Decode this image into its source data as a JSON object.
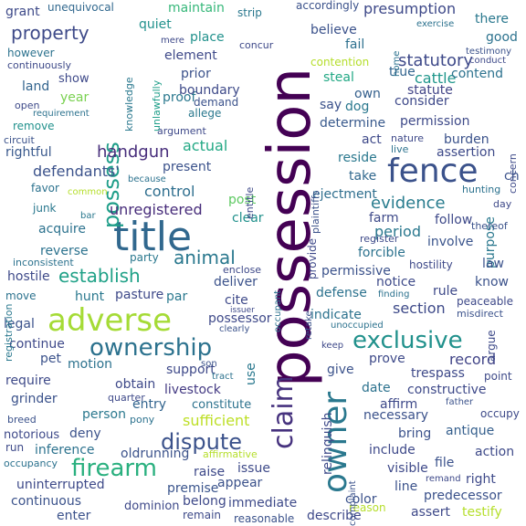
{
  "words": [
    {
      "text": "possession",
      "color": "#440154"
    },
    {
      "text": "title",
      "color": "#31688e"
    },
    {
      "text": "fence",
      "color": "#3b528b"
    },
    {
      "text": "adverse",
      "color": "#a5db36"
    },
    {
      "text": "owner",
      "color": "#2a788e"
    },
    {
      "text": "claim",
      "color": "#46327e"
    },
    {
      "text": "exclusive",
      "color": "#21918c"
    },
    {
      "text": "ownership",
      "color": "#2c728e"
    },
    {
      "text": "firearm",
      "color": "#2ab07f"
    },
    {
      "text": "dispute",
      "color": "#3b528b"
    },
    {
      "text": "possess",
      "color": "#1f9e89"
    },
    {
      "text": "property",
      "color": "#3e4a89"
    },
    {
      "text": "establish",
      "color": "#1fa187"
    },
    {
      "text": "animal",
      "color": "#2a788e"
    },
    {
      "text": "handgun",
      "color": "#472d7b"
    },
    {
      "text": "evidence",
      "color": "#287c8e"
    },
    {
      "text": "statutory",
      "color": "#3e4989"
    },
    {
      "text": "actual",
      "color": "#22a884"
    },
    {
      "text": "defendants'",
      "color": "#3b528b"
    },
    {
      "text": "control",
      "color": "#2e6e8e"
    },
    {
      "text": "unregistered",
      "color": "#472c7a"
    },
    {
      "text": "presumption",
      "color": "#3e4989"
    },
    {
      "text": "cattle",
      "color": "#1f968b"
    },
    {
      "text": "period",
      "color": "#2a788e"
    },
    {
      "text": "section",
      "color": "#3e4a89"
    },
    {
      "text": "record",
      "color": "#414487"
    },
    {
      "text": "sufficient",
      "color": "#bddf26"
    },
    {
      "text": "livestock",
      "color": "#443a83"
    },
    {
      "text": "antique",
      "color": "#355f8d"
    },
    {
      "text": "quiet",
      "color": "#21918c"
    },
    {
      "text": "proof",
      "color": "#2a788e"
    },
    {
      "text": "rightful",
      "color": "#38588c"
    },
    {
      "text": "person",
      "color": "#2a788e"
    },
    {
      "text": "premise",
      "color": "#3a548c"
    },
    {
      "text": "entry",
      "color": "#32648e"
    },
    {
      "text": "right",
      "color": "#3e4989"
    },
    {
      "text": "predecessor",
      "color": "#3b528b"
    },
    {
      "text": "fail",
      "color": "#2d708e"
    },
    {
      "text": "maintain",
      "color": "#35b779"
    },
    {
      "text": "grant",
      "color": "#3e4a89"
    },
    {
      "text": "unequivocal",
      "color": "#31688e"
    },
    {
      "text": "strip",
      "color": "#2a788e"
    },
    {
      "text": "accordingly",
      "color": "#3b528b"
    },
    {
      "text": "there",
      "color": "#2a788e"
    },
    {
      "text": "good",
      "color": "#2c728e"
    },
    {
      "text": "place",
      "color": "#21918c"
    },
    {
      "text": "element",
      "color": "#3e4989"
    },
    {
      "text": "concur",
      "color": "#3e4989"
    },
    {
      "text": "believe",
      "color": "#3b528b"
    },
    {
      "text": "contention",
      "color": "#b5de2b"
    },
    {
      "text": "true",
      "color": "#32648e"
    },
    {
      "text": "contend",
      "color": "#2c728e"
    },
    {
      "text": "steal",
      "color": "#22a884"
    },
    {
      "text": "statute",
      "color": "#414487"
    },
    {
      "text": "prior",
      "color": "#3b528b"
    },
    {
      "text": "year",
      "color": "#7ad151"
    },
    {
      "text": "show",
      "color": "#3e4989"
    },
    {
      "text": "land",
      "color": "#32648e"
    },
    {
      "text": "however",
      "color": "#2c728e"
    },
    {
      "text": "continuously",
      "color": "#3e4a89"
    },
    {
      "text": "remove",
      "color": "#21918c"
    },
    {
      "text": "boundary",
      "color": "#3e4a89"
    },
    {
      "text": "demand",
      "color": "#3b528b"
    },
    {
      "text": "allege",
      "color": "#2a788e"
    },
    {
      "text": "argument",
      "color": "#3e4989"
    },
    {
      "text": "knowledge",
      "color": "#2a788e"
    },
    {
      "text": "unlawfully",
      "color": "#1f9e89"
    },
    {
      "text": "say",
      "color": "#3b528b"
    },
    {
      "text": "own",
      "color": "#35608d"
    },
    {
      "text": "dog",
      "color": "#2a788e"
    },
    {
      "text": "consider",
      "color": "#3e4989"
    },
    {
      "text": "permission",
      "color": "#3e4a89"
    },
    {
      "text": "determine",
      "color": "#38598c"
    },
    {
      "text": "act",
      "color": "#3e4989"
    },
    {
      "text": "burden",
      "color": "#3b528b"
    },
    {
      "text": "reside",
      "color": "#2a788e"
    },
    {
      "text": "assertion",
      "color": "#3e4a89"
    },
    {
      "text": "take",
      "color": "#31688e"
    },
    {
      "text": "present",
      "color": "#3b528b"
    },
    {
      "text": "favor",
      "color": "#2c728e"
    },
    {
      "text": "junk",
      "color": "#2a788e"
    },
    {
      "text": "acquire",
      "color": "#2c728e"
    },
    {
      "text": "post",
      "color": "#5ec962"
    },
    {
      "text": "clear",
      "color": "#21918c"
    },
    {
      "text": "ejectment",
      "color": "#2e6e8e"
    },
    {
      "text": "farm",
      "color": "#3e4a89"
    },
    {
      "text": "follow",
      "color": "#3e4989"
    },
    {
      "text": "involve",
      "color": "#3a548c"
    },
    {
      "text": "provide",
      "color": "#3e4989"
    },
    {
      "text": "forcible",
      "color": "#2c728e"
    },
    {
      "text": "purpose",
      "color": "#2a788e"
    },
    {
      "text": "hostility",
      "color": "#3e4989"
    },
    {
      "text": "law",
      "color": "#3b528b"
    },
    {
      "text": "party",
      "color": "#2a788e"
    },
    {
      "text": "reverse",
      "color": "#2c728e"
    },
    {
      "text": "hostile",
      "color": "#3e4a89"
    },
    {
      "text": "pasture",
      "color": "#3e4989"
    },
    {
      "text": "hunt",
      "color": "#2a788e"
    },
    {
      "text": "move",
      "color": "#2c728e"
    },
    {
      "text": "deliver",
      "color": "#3b528b"
    },
    {
      "text": "par",
      "color": "#2a788e"
    },
    {
      "text": "cite",
      "color": "#3e4989"
    },
    {
      "text": "permissive",
      "color": "#3b528b"
    },
    {
      "text": "notice",
      "color": "#3e4a89"
    },
    {
      "text": "defense",
      "color": "#2c728e"
    },
    {
      "text": "rule",
      "color": "#3e4989"
    },
    {
      "text": "know",
      "color": "#3b528b"
    },
    {
      "text": "possessor",
      "color": "#3e4989"
    },
    {
      "text": "indicate",
      "color": "#2c728e"
    },
    {
      "text": "argue",
      "color": "#3e4a89"
    },
    {
      "text": "legal",
      "color": "#3b528b"
    },
    {
      "text": "continue",
      "color": "#3e4989"
    },
    {
      "text": "pet",
      "color": "#3b528b"
    },
    {
      "text": "motion",
      "color": "#2c728e"
    },
    {
      "text": "support",
      "color": "#3e4989"
    },
    {
      "text": "use",
      "color": "#2a788e"
    },
    {
      "text": "prove",
      "color": "#3e4a89"
    },
    {
      "text": "trespass",
      "color": "#3e4989"
    },
    {
      "text": "give",
      "color": "#3b528b"
    },
    {
      "text": "constructive",
      "color": "#3e4989"
    },
    {
      "text": "point",
      "color": "#3e4a89"
    },
    {
      "text": "require",
      "color": "#3e4a89"
    },
    {
      "text": "obtain",
      "color": "#3e4989"
    },
    {
      "text": "grinder",
      "color": "#3b528b"
    },
    {
      "text": "constitute",
      "color": "#2c728e"
    },
    {
      "text": "date",
      "color": "#2c728e"
    },
    {
      "text": "affirm",
      "color": "#3e4989"
    },
    {
      "text": "necessary",
      "color": "#3b528b"
    },
    {
      "text": "occupy",
      "color": "#3e4a89"
    },
    {
      "text": "notorious",
      "color": "#3e4989"
    },
    {
      "text": "deny",
      "color": "#3b528b"
    },
    {
      "text": "inference",
      "color": "#2c728e"
    },
    {
      "text": "run",
      "color": "#3e4a89"
    },
    {
      "text": "oldrunning",
      "color": "#3b528b"
    },
    {
      "text": "bring",
      "color": "#3b528b"
    },
    {
      "text": "include",
      "color": "#3e4989"
    },
    {
      "text": "action",
      "color": "#3e4a89"
    },
    {
      "text": "file",
      "color": "#3b528b"
    },
    {
      "text": "raise",
      "color": "#3e4989"
    },
    {
      "text": "issue",
      "color": "#3e4a89"
    },
    {
      "text": "appear",
      "color": "#3b528b"
    },
    {
      "text": "visible",
      "color": "#3e4989"
    },
    {
      "text": "line",
      "color": "#3b528b"
    },
    {
      "text": "uninterrupted",
      "color": "#3e4a89"
    },
    {
      "text": "continuous",
      "color": "#3b528b"
    },
    {
      "text": "belong",
      "color": "#3e4989"
    },
    {
      "text": "immediate",
      "color": "#3e4a89"
    },
    {
      "text": "color",
      "color": "#3b528b"
    },
    {
      "text": "assert",
      "color": "#3e4989"
    },
    {
      "text": "testify",
      "color": "#b5de2b"
    },
    {
      "text": "enter",
      "color": "#3b528b"
    },
    {
      "text": "dominion",
      "color": "#3e4989"
    },
    {
      "text": "remain",
      "color": "#3e4a89"
    },
    {
      "text": "reasonable",
      "color": "#3b528b"
    },
    {
      "text": "describe",
      "color": "#3e4989"
    },
    {
      "text": "relinquish",
      "color": "#3e4a89"
    },
    {
      "text": "reason",
      "color": "#b5de2b"
    },
    {
      "text": "registration",
      "color": "#2a788e"
    },
    {
      "text": "inconsistent",
      "color": "#2c728e"
    },
    {
      "text": "common",
      "color": "#b5de2b"
    },
    {
      "text": "because",
      "color": "#2c728e"
    },
    {
      "text": "bar",
      "color": "#2a788e"
    },
    {
      "text": "enclose",
      "color": "#3e4989"
    },
    {
      "text": "occupant",
      "color": "#2c728e"
    },
    {
      "text": "retake",
      "color": "#3b528b"
    },
    {
      "text": "finding",
      "color": "#2c728e"
    },
    {
      "text": "peaceable",
      "color": "#3e4989"
    },
    {
      "text": "misdirect",
      "color": "#3b528b"
    },
    {
      "text": "unoccupied",
      "color": "#2c728e"
    },
    {
      "text": "keep",
      "color": "#3e4989"
    },
    {
      "text": "clearly",
      "color": "#3b528b"
    },
    {
      "text": "issuer",
      "color": "#3e4989"
    },
    {
      "text": "tract",
      "color": "#2c728e"
    },
    {
      "text": "son",
      "color": "#3b528b"
    },
    {
      "text": "quarter",
      "color": "#3e4989"
    },
    {
      "text": "pony",
      "color": "#2c728e"
    },
    {
      "text": "breed",
      "color": "#3b528b"
    },
    {
      "text": "occupancy",
      "color": "#2c728e"
    },
    {
      "text": "affirmative",
      "color": "#b5de2b"
    },
    {
      "text": "complaint",
      "color": "#3b528b"
    },
    {
      "text": "remand",
      "color": "#3e4989"
    },
    {
      "text": "father",
      "color": "#3b528b"
    },
    {
      "text": "hunting",
      "color": "#2c728e"
    },
    {
      "text": "day",
      "color": "#3e4989"
    },
    {
      "text": "thereof",
      "color": "#3b528b"
    },
    {
      "text": "register",
      "color": "#3e4a89"
    },
    {
      "text": "nature",
      "color": "#3e4989"
    },
    {
      "text": "live",
      "color": "#2c728e"
    },
    {
      "text": "plaintiffs",
      "color": "#3b528b"
    },
    {
      "text": "entitle",
      "color": "#3e4989"
    },
    {
      "text": "circuit",
      "color": "#3b528b"
    },
    {
      "text": "open",
      "color": "#3e4a89"
    },
    {
      "text": "requirement",
      "color": "#2c728e"
    },
    {
      "text": "mere",
      "color": "#3e4989"
    },
    {
      "text": "exercise",
      "color": "#2c728e"
    },
    {
      "text": "testimony",
      "color": "#3b528b"
    },
    {
      "text": "conduct",
      "color": "#3e4989"
    },
    {
      "text": "home",
      "color": "#2c728e"
    },
    {
      "text": "concern",
      "color": "#3e4a89"
    },
    {
      "text": "ch",
      "color": "#3b528b"
    }
  ]
}
